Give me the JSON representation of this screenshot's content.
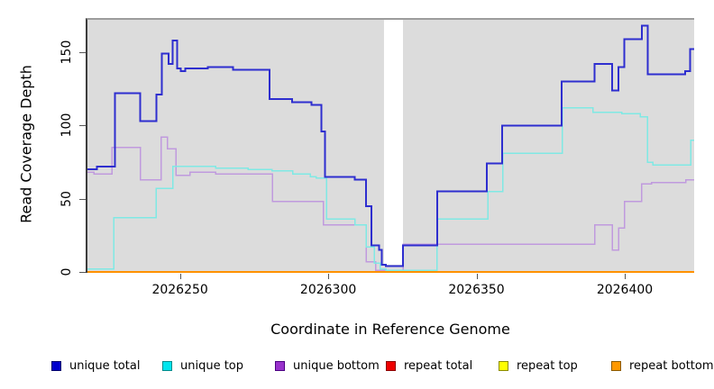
{
  "chart_data": {
    "type": "line",
    "subtype": "step-coverage-plot",
    "title": "",
    "xlabel": "Coordinate in Reference Genome",
    "ylabel": "Read Coverage Depth",
    "xlim": [
      2026218.8,
      2026423.4
    ],
    "ylim": [
      0,
      173
    ],
    "x_ticks": [
      2026250,
      2026300,
      2026350,
      2026400
    ],
    "x_tick_labels": [
      "2026250",
      "2026300",
      "2026350",
      "2026400"
    ],
    "y_ticks": [
      0,
      50,
      100,
      150
    ],
    "y_tick_labels": [
      "0",
      "50",
      "100",
      "150"
    ],
    "grid": false,
    "plot_bg_color": "#dcdcdc",
    "gap_region": {
      "x0": 2026318.8,
      "x1": 2026325.2,
      "color": "#ffffff"
    },
    "legend_position": "bottom",
    "series": [
      {
        "name": "repeat total",
        "color": "#e00000",
        "width": 1.5,
        "points": [
          [
            2026218.8,
            0
          ]
        ]
      },
      {
        "name": "repeat top",
        "color": "#ffff00",
        "width": 1.5,
        "points": [
          [
            2026218.8,
            0
          ]
        ]
      },
      {
        "name": "repeat bottom",
        "color": "#ff9100",
        "width": 2,
        "points": [
          [
            2026218.8,
            0
          ]
        ]
      },
      {
        "name": "unique bottom",
        "color": "#c09ade",
        "width": 1.5,
        "points": [
          [
            2026218.8,
            68
          ],
          [
            2026221,
            67
          ],
          [
            2026227,
            85
          ],
          [
            2026236.6,
            63
          ],
          [
            2026243.7,
            92
          ],
          [
            2026245.7,
            84
          ],
          [
            2026248.6,
            66
          ],
          [
            2026253.3,
            68
          ],
          [
            2026262,
            67
          ],
          [
            2026281.2,
            48
          ],
          [
            2026298.4,
            32
          ],
          [
            2026312.8,
            7
          ],
          [
            2026316,
            1
          ],
          [
            2026325.2,
            19
          ],
          [
            2026389.8,
            32
          ],
          [
            2026395.8,
            15
          ],
          [
            2026397.9,
            30
          ],
          [
            2026399.9,
            48
          ],
          [
            2026405.7,
            60
          ],
          [
            2026409,
            61
          ],
          [
            2026420.6,
            63
          ]
        ]
      },
      {
        "name": "unique top",
        "color": "#7fe9e4",
        "width": 1.5,
        "points": [
          [
            2026218.8,
            2
          ],
          [
            2026227.7,
            37
          ],
          [
            2026242,
            57
          ],
          [
            2026247.6,
            72
          ],
          [
            2026262,
            71
          ],
          [
            2026273,
            70
          ],
          [
            2026281,
            69
          ],
          [
            2026288,
            67
          ],
          [
            2026294,
            65
          ],
          [
            2026296,
            64
          ],
          [
            2026299.4,
            36
          ],
          [
            2026309,
            32
          ],
          [
            2026312.8,
            17
          ],
          [
            2026315.5,
            6
          ],
          [
            2026317.5,
            2
          ],
          [
            2026319.5,
            1
          ],
          [
            2026336.6,
            36
          ],
          [
            2026353.8,
            55
          ],
          [
            2026358.9,
            81
          ],
          [
            2026378.9,
            112
          ],
          [
            2026389.2,
            109
          ],
          [
            2026399,
            108
          ],
          [
            2026405.2,
            106
          ],
          [
            2026407.7,
            75
          ],
          [
            2026409.5,
            73
          ],
          [
            2026422.3,
            90
          ]
        ]
      },
      {
        "name": "unique total",
        "color": "#2e2ecf",
        "width": 2,
        "points": [
          [
            2026218.8,
            70
          ],
          [
            2026222,
            72
          ],
          [
            2026228,
            122
          ],
          [
            2026236.6,
            103
          ],
          [
            2026242,
            121
          ],
          [
            2026243.9,
            149
          ],
          [
            2026246.2,
            142
          ],
          [
            2026247.6,
            158
          ],
          [
            2026249,
            139
          ],
          [
            2026250.2,
            137
          ],
          [
            2026251.8,
            139
          ],
          [
            2026259.4,
            140
          ],
          [
            2026267.9,
            138
          ],
          [
            2026280.2,
            118
          ],
          [
            2026287.8,
            116
          ],
          [
            2026294.3,
            114
          ],
          [
            2026297.7,
            96
          ],
          [
            2026298.9,
            65
          ],
          [
            2026309,
            63
          ],
          [
            2026312.8,
            45
          ],
          [
            2026314.6,
            18
          ],
          [
            2026317.1,
            15
          ],
          [
            2026318.1,
            5
          ],
          [
            2026319.5,
            4
          ],
          [
            2026325.2,
            18
          ],
          [
            2026336.8,
            55
          ],
          [
            2026353.5,
            74
          ],
          [
            2026358.7,
            100
          ],
          [
            2026378.7,
            130
          ],
          [
            2026389.8,
            142
          ],
          [
            2026395.8,
            124
          ],
          [
            2026397.9,
            140
          ],
          [
            2026399.9,
            159
          ],
          [
            2026405.7,
            168
          ],
          [
            2026407.7,
            135
          ],
          [
            2026420.4,
            137
          ],
          [
            2026422,
            152
          ]
        ]
      }
    ]
  },
  "legend": {
    "items": [
      {
        "label": "unique total",
        "swatch": "#0000cd",
        "border": "#00006b"
      },
      {
        "label": "unique top",
        "swatch": "#00e5ee",
        "border": "#008b8b"
      },
      {
        "label": "unique bottom",
        "swatch": "#9932cc",
        "border": "#4b0082"
      },
      {
        "label": "repeat total",
        "swatch": "#ee0000",
        "border": "#8b0000"
      },
      {
        "label": "repeat top",
        "swatch": "#ffff00",
        "border": "#8b8b00"
      },
      {
        "label": "repeat bottom",
        "swatch": "#ff9900",
        "border": "#8b5a00"
      }
    ]
  },
  "colors": {
    "plot_background": "#dcdcdc",
    "gap_band": "#ffffff",
    "axis_line": "#3c3c3c",
    "plot_top_border": "#9c9c9c",
    "tick": "#555555",
    "text": "#000000"
  }
}
